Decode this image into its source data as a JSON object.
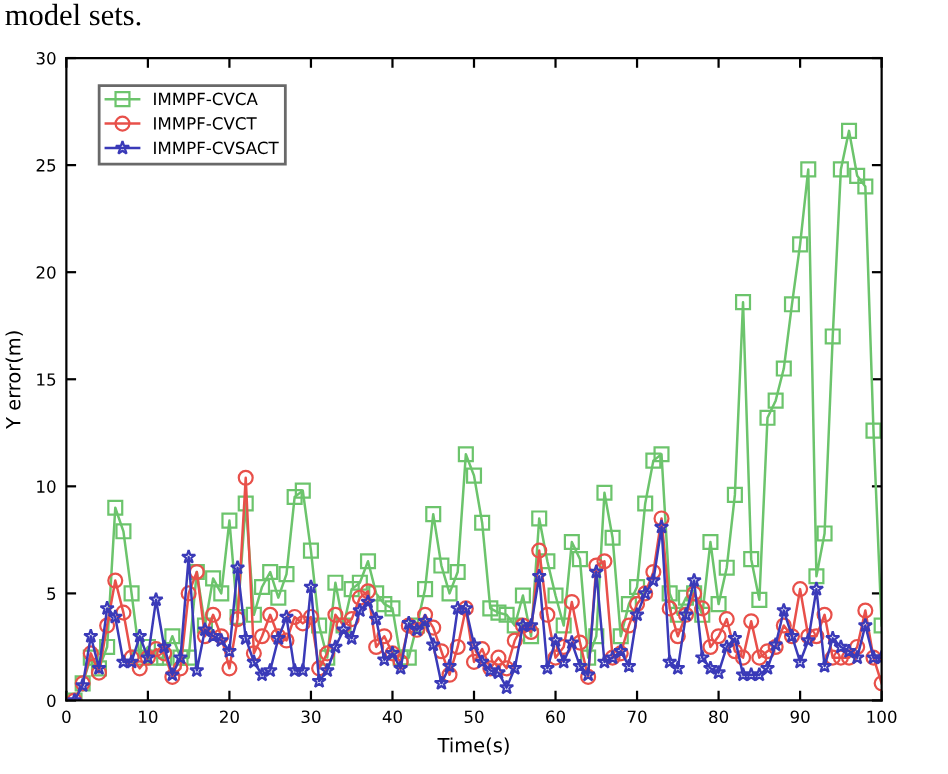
{
  "chart_data": {
    "type": "line",
    "annotations": [
      "model sets."
    ],
    "xlabel": "Time(s)",
    "ylabel": "Y error(m)",
    "x": [
      1,
      2,
      3,
      4,
      5,
      6,
      7,
      8,
      9,
      10,
      11,
      12,
      13,
      14,
      15,
      16,
      17,
      18,
      19,
      20,
      21,
      22,
      23,
      24,
      25,
      26,
      27,
      28,
      29,
      30,
      31,
      32,
      33,
      34,
      35,
      36,
      37,
      38,
      39,
      40,
      41,
      42,
      43,
      44,
      45,
      46,
      47,
      48,
      49,
      50,
      51,
      52,
      53,
      54,
      55,
      56,
      57,
      58,
      59,
      60,
      61,
      62,
      63,
      64,
      65,
      66,
      67,
      68,
      69,
      70,
      71,
      72,
      73,
      74,
      75,
      76,
      77,
      78,
      79,
      80,
      81,
      82,
      83,
      84,
      85,
      86,
      87,
      88,
      89,
      90,
      91,
      92,
      93,
      94,
      95,
      96,
      97,
      98,
      99,
      100
    ],
    "series": [
      {
        "name": "IMMPF-CVCA",
        "color": "#6cc46c",
        "marker": "square",
        "values": [
          0,
          0.8,
          2,
          1.5,
          2.5,
          9,
          7.9,
          5,
          2,
          2.5,
          2,
          2,
          3,
          2,
          2,
          6,
          3.5,
          5.7,
          5,
          8.4,
          3.9,
          9.2,
          4,
          5.3,
          6,
          4.8,
          5.9,
          9.5,
          9.8,
          7,
          3.5,
          2,
          5.5,
          3.5,
          5.2,
          5.5,
          6.5,
          5,
          4.5,
          4.3,
          2,
          2,
          3.5,
          5.2,
          8.7,
          6.3,
          5,
          6,
          11.5,
          10.5,
          8.3,
          4.3,
          4.1,
          4,
          3.5,
          4.9,
          3,
          8.5,
          6.5,
          4.9,
          3.5,
          7.4,
          6.6,
          2,
          3,
          9.7,
          7.6,
          3,
          4.5,
          5.3,
          9.2,
          11.2,
          11.5,
          5,
          4,
          4.8,
          5,
          4,
          7.4,
          4.5,
          6.2,
          9.6,
          18.6,
          6.6,
          4.7,
          13.2,
          14,
          15.5,
          18.5,
          21.3,
          24.8,
          5.8,
          7.8,
          17,
          24.8,
          26.6,
          24.5,
          24,
          12.6,
          3.5
        ]
      },
      {
        "name": "IMMPF-CVCT",
        "color": "#e8504a",
        "marker": "circle",
        "values": [
          0,
          0.8,
          2.2,
          1.3,
          3.5,
          5.6,
          4.1,
          2,
          1.5,
          2,
          2.4,
          2.2,
          1.1,
          1.5,
          5,
          6,
          3,
          4,
          3,
          1.5,
          3.8,
          10.4,
          2.2,
          3,
          4,
          3,
          2.8,
          3.9,
          3.6,
          3.9,
          1.5,
          2.2,
          4,
          3.5,
          3.8,
          4.8,
          5.1,
          2.5,
          3,
          2.2,
          1.8,
          3.5,
          3.3,
          4,
          3.4,
          2.3,
          1.2,
          2.5,
          4.3,
          1.8,
          2.4,
          1.5,
          2,
          1.5,
          2.8,
          3.5,
          3.2,
          7,
          4,
          2,
          2.5,
          4.6,
          2.7,
          1.1,
          6.3,
          6.5,
          2,
          2.2,
          3.5,
          4.5,
          5,
          6,
          8.5,
          4.3,
          3,
          4,
          5,
          4.3,
          2.5,
          3,
          3.8,
          2.3,
          2,
          3.7,
          2,
          2.3,
          2.5,
          3.5,
          3,
          5.2,
          3,
          3,
          4,
          2,
          2,
          2,
          2.5,
          4.2,
          2,
          0.8
        ]
      },
      {
        "name": "IMMPF-CVSACT",
        "color": "#3a3ab8",
        "marker": "star",
        "values": [
          0,
          0.7,
          3,
          1.5,
          4.3,
          3.9,
          1.8,
          1.8,
          3,
          2,
          4.7,
          2.5,
          1.2,
          2,
          6.7,
          1.4,
          3.3,
          3,
          2.8,
          2.3,
          6.2,
          2.9,
          1.8,
          1.2,
          1.4,
          2.9,
          3.9,
          1.4,
          1.4,
          5.3,
          0.9,
          1.4,
          2.5,
          3.3,
          2.9,
          4.2,
          4.6,
          3.8,
          1.9,
          2.2,
          1.5,
          3.6,
          3.3,
          3.7,
          2.6,
          0.8,
          1.6,
          4.3,
          4.3,
          2.6,
          1.8,
          1.4,
          1.3,
          0.6,
          1.5,
          3.5,
          3.5,
          5.8,
          1.5,
          2.8,
          1.8,
          2.7,
          1.6,
          1.2,
          6,
          1.8,
          2,
          2.3,
          1.6,
          4,
          5,
          5.6,
          8.1,
          1.8,
          1.5,
          4,
          5.6,
          2,
          1.5,
          1.3,
          2.5,
          2.9,
          1.2,
          1.2,
          1.2,
          1.5,
          2.6,
          4.2,
          3,
          1.8,
          2.8,
          5.2,
          1.6,
          2.9,
          2.5,
          2.3,
          2,
          3.5,
          2,
          2
        ]
      }
    ],
    "xlim": [
      0,
      100
    ],
    "xticks": [
      0,
      10,
      20,
      30,
      40,
      50,
      60,
      70,
      80,
      90,
      100
    ],
    "ylim": [
      0,
      30
    ],
    "yticks": [
      0,
      5,
      10,
      15,
      20,
      25,
      30
    ],
    "legend": "top left",
    "grid": false,
    "line_style": "solid"
  }
}
